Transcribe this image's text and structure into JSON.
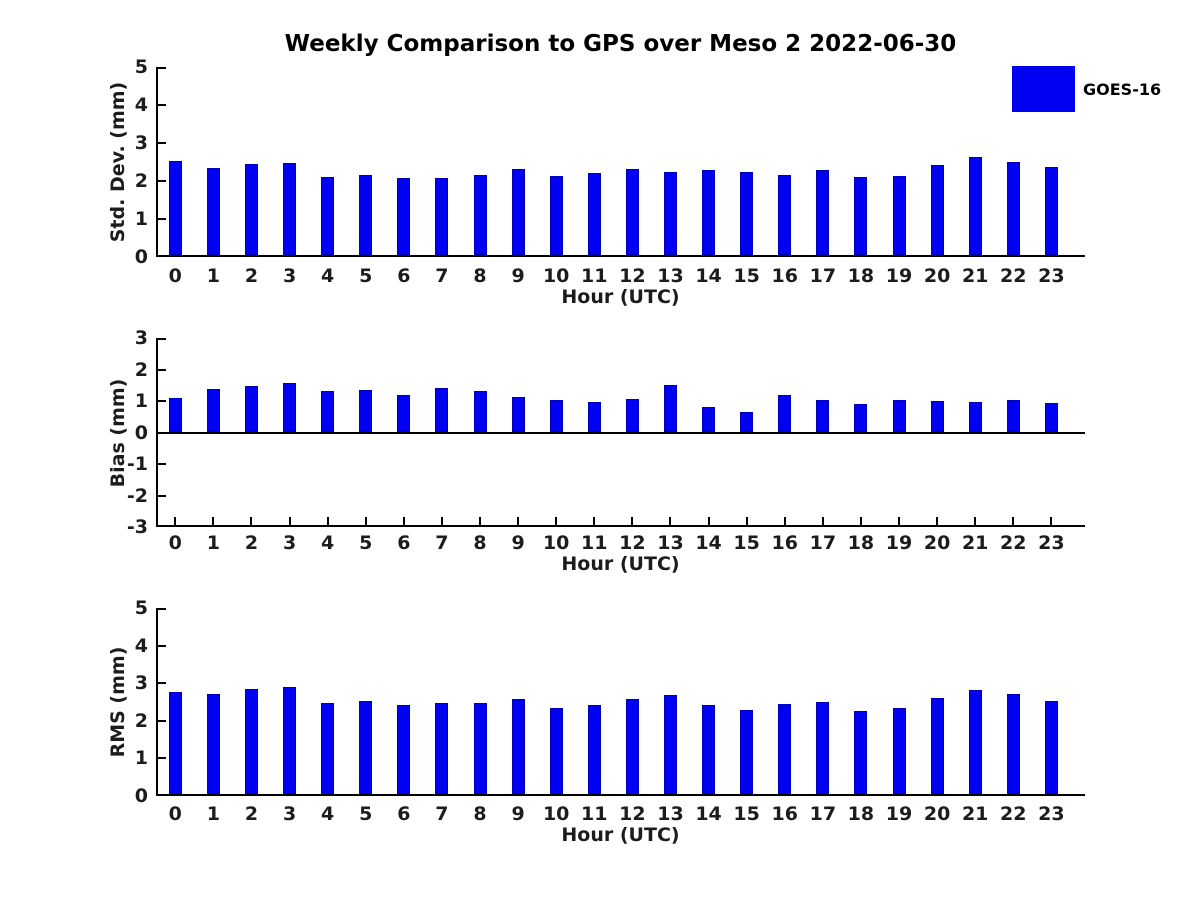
{
  "title": "Weekly Comparison to GPS over Meso 2 2022-06-30",
  "legend": {
    "label": "GOES-16",
    "position": "upper right outside"
  },
  "colors": {
    "bar_fill": "#0000f2",
    "bar_edge": "#0000bb",
    "axis": "#000000",
    "tick_label": "#1c1c1c",
    "background": "#ffffff"
  },
  "chart_data": [
    {
      "id": "std-dev",
      "type": "bar",
      "title": "",
      "ylabel": "Std. Dev. (mm)",
      "xlabel": "Hour (UTC)",
      "ylim": [
        0,
        5
      ],
      "yticks": [
        0,
        1,
        2,
        3,
        4,
        5
      ],
      "grid": false,
      "categories": [
        "0",
        "1",
        "2",
        "3",
        "4",
        "5",
        "6",
        "7",
        "8",
        "9",
        "10",
        "11",
        "12",
        "13",
        "14",
        "15",
        "16",
        "17",
        "18",
        "19",
        "20",
        "21",
        "22",
        "23"
      ],
      "series": [
        {
          "name": "GOES-16",
          "values": [
            2.48,
            2.3,
            2.39,
            2.42,
            2.04,
            2.1,
            2.02,
            2.03,
            2.1,
            2.26,
            2.07,
            2.17,
            2.27,
            2.18,
            2.25,
            2.18,
            2.1,
            2.23,
            2.04,
            2.07,
            2.36,
            2.59,
            2.45,
            2.31
          ]
        }
      ]
    },
    {
      "id": "bias",
      "type": "bar",
      "title": "",
      "ylabel": "Bias (mm)",
      "xlabel": "Hour (UTC)",
      "ylim": [
        -3,
        3
      ],
      "yticks": [
        -3,
        -2,
        -1,
        0,
        1,
        2,
        3
      ],
      "grid": false,
      "categories": [
        "0",
        "1",
        "2",
        "3",
        "4",
        "5",
        "6",
        "7",
        "8",
        "9",
        "10",
        "11",
        "12",
        "13",
        "14",
        "15",
        "16",
        "17",
        "18",
        "19",
        "20",
        "21",
        "22",
        "23"
      ],
      "series": [
        {
          "name": "GOES-16",
          "values": [
            1.07,
            1.36,
            1.46,
            1.55,
            1.28,
            1.33,
            1.17,
            1.37,
            1.28,
            1.08,
            1.0,
            0.95,
            1.04,
            1.48,
            0.78,
            0.61,
            1.17,
            1.01,
            0.88,
            1.0,
            0.97,
            0.94,
            1.0,
            0.89
          ]
        }
      ]
    },
    {
      "id": "rms",
      "type": "bar",
      "title": "",
      "ylabel": "RMS (mm)",
      "xlabel": "Hour (UTC)",
      "ylim": [
        0,
        5
      ],
      "yticks": [
        0,
        1,
        2,
        3,
        4,
        5
      ],
      "grid": false,
      "categories": [
        "0",
        "1",
        "2",
        "3",
        "4",
        "5",
        "6",
        "7",
        "8",
        "9",
        "10",
        "11",
        "12",
        "13",
        "14",
        "15",
        "16",
        "17",
        "18",
        "19",
        "20",
        "21",
        "22",
        "23"
      ],
      "series": [
        {
          "name": "GOES-16",
          "values": [
            2.72,
            2.66,
            2.79,
            2.84,
            2.43,
            2.48,
            2.36,
            2.43,
            2.43,
            2.52,
            2.3,
            2.37,
            2.52,
            2.63,
            2.38,
            2.24,
            2.4,
            2.44,
            2.22,
            2.29,
            2.55,
            2.77,
            2.65,
            2.48
          ]
        }
      ]
    }
  ]
}
